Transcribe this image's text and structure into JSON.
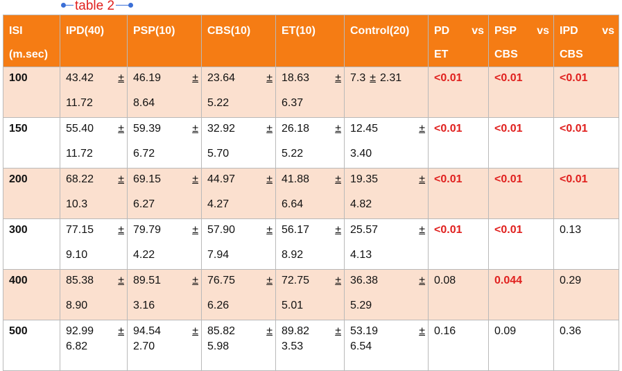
{
  "caption": "table 2",
  "headers": {
    "isi": [
      "ISI",
      "(m.sec)"
    ],
    "ipd": "IPD(40)",
    "psp": "PSP(10)",
    "cbs": "CBS(10)",
    "et": "ET(10)",
    "control": "Control(20)",
    "pd_et": [
      "PD",
      "vs",
      "ET"
    ],
    "psp_cbs": [
      "PSP",
      "vs",
      "CBS"
    ],
    "ipd_cbs": [
      "IPD",
      "vs",
      "CBS"
    ]
  },
  "pm": "±",
  "rows": [
    {
      "isi": "100",
      "ipd": [
        "43.42",
        "11.72"
      ],
      "psp": [
        "46.19",
        "8.64"
      ],
      "cbs": [
        "23.64",
        "5.22"
      ],
      "et": [
        "18.63",
        "6.37"
      ],
      "control": [
        "7.3",
        "2.31"
      ],
      "p1": "<0.01",
      "p2": "<0.01",
      "p3": "<0.01"
    },
    {
      "isi": "150",
      "ipd": [
        "55.40",
        "11.72"
      ],
      "psp": [
        "59.39",
        "6.72"
      ],
      "cbs": [
        "32.92",
        "5.70"
      ],
      "et": [
        "26.18",
        "5.22"
      ],
      "control": [
        "12.45",
        "3.40"
      ],
      "p1": "<0.01",
      "p2": "<0.01",
      "p3": "<0.01"
    },
    {
      "isi": "200",
      "ipd": [
        "68.22",
        "10.3"
      ],
      "psp": [
        "69.15",
        "6.27"
      ],
      "cbs": [
        "44.97",
        "4.27"
      ],
      "et": [
        "41.88",
        "6.64"
      ],
      "control": [
        "19.35",
        "4.82"
      ],
      "p1": "<0.01",
      "p2": "<0.01",
      "p3": "<0.01"
    },
    {
      "isi": "300",
      "ipd": [
        "77.15",
        "9.10"
      ],
      "psp": [
        "79.79",
        "4.22"
      ],
      "cbs": [
        "57.90",
        "7.94"
      ],
      "et": [
        "56.17",
        "8.92"
      ],
      "control": [
        "25.57",
        "4.13"
      ],
      "p1": "<0.01",
      "p2": "<0.01",
      "p3": "0.13"
    },
    {
      "isi": "400",
      "ipd": [
        "85.38",
        "8.90"
      ],
      "psp": [
        "89.51",
        "3.16"
      ],
      "cbs": [
        "76.75",
        "6.26"
      ],
      "et": [
        "72.75",
        "5.01"
      ],
      "control": [
        "36.38",
        "5.29"
      ],
      "p1": "0.08",
      "p2": "0.044",
      "p3": "0.29"
    },
    {
      "isi": "500",
      "ipd": [
        "92.99",
        "6.82"
      ],
      "psp": [
        "94.54",
        "2.70"
      ],
      "cbs": [
        "85.82",
        "5.98"
      ],
      "et": [
        "89.82",
        "3.53"
      ],
      "control": [
        "53.19",
        "6.54"
      ],
      "p1": "0.16",
      "p2": "0.09",
      "p3": "0.36"
    }
  ],
  "colors": {
    "header_bg": "#f57c14",
    "row_shade": "#fbe0cf",
    "significant": "#e0201e"
  }
}
